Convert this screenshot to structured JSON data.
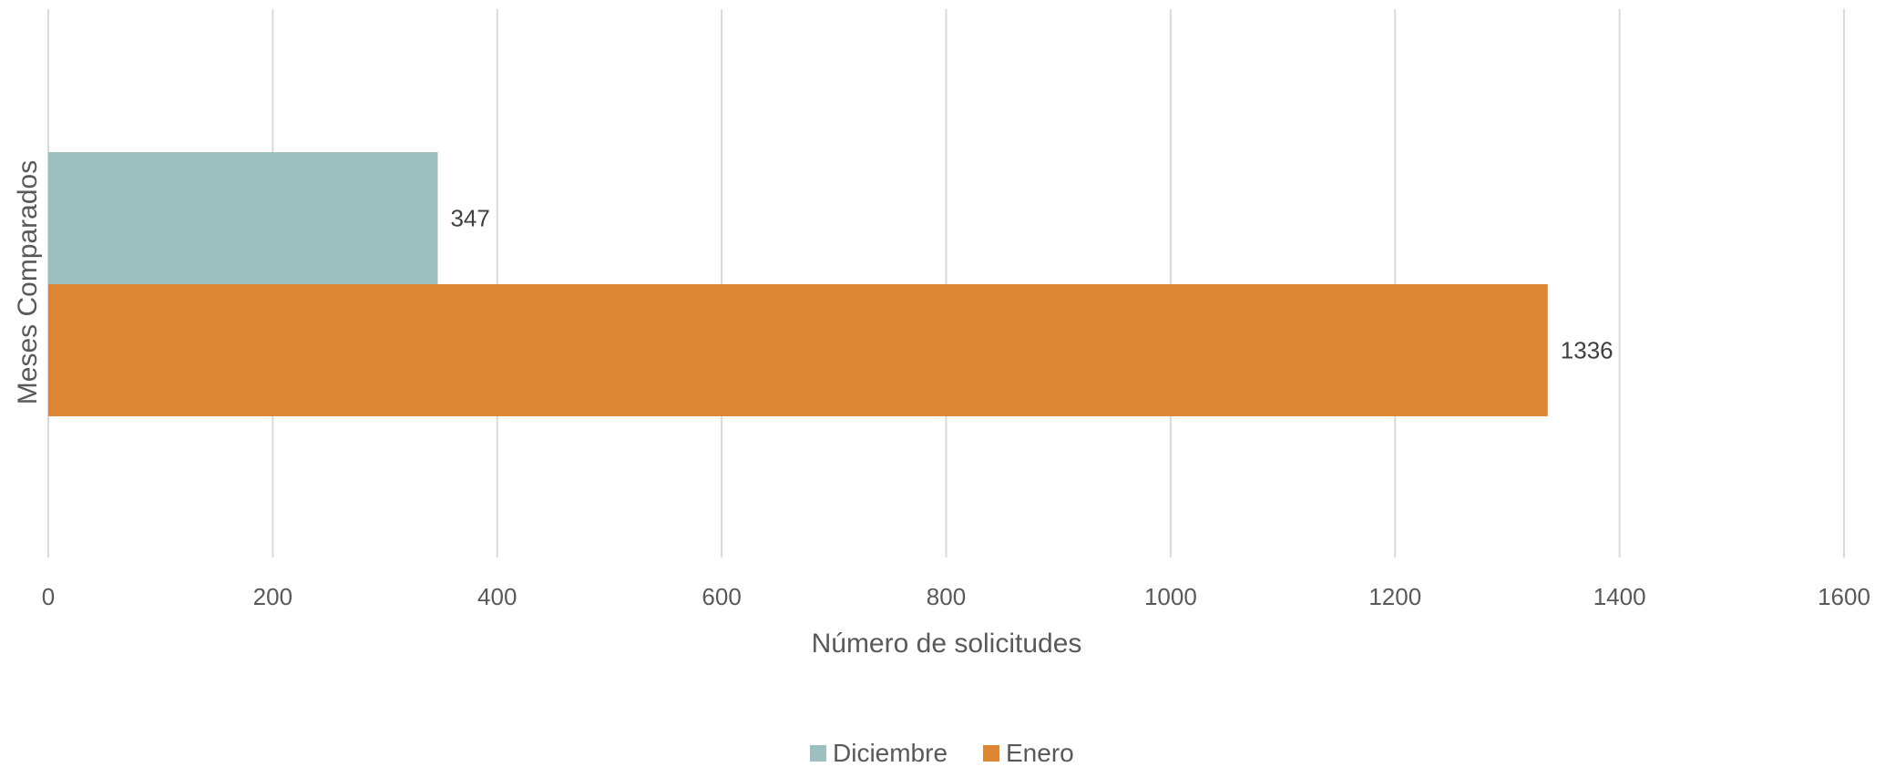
{
  "chart_data": {
    "type": "bar",
    "orientation": "horizontal",
    "title": "",
    "xlabel": "Número de solicitudes",
    "ylabel": "Meses Comparados",
    "xlim": [
      0,
      1600
    ],
    "x_ticks": [
      "0",
      "200",
      "400",
      "600",
      "800",
      "1000",
      "1200",
      "1400",
      "1600"
    ],
    "grid": true,
    "legend_position": "bottom",
    "series": [
      {
        "name": "Diciembre",
        "values": [
          347
        ],
        "color": "#9dbfbf"
      },
      {
        "name": "Enero",
        "values": [
          1336
        ],
        "color": "#dd8633"
      }
    ],
    "data_labels": [
      "347",
      "1336"
    ]
  }
}
